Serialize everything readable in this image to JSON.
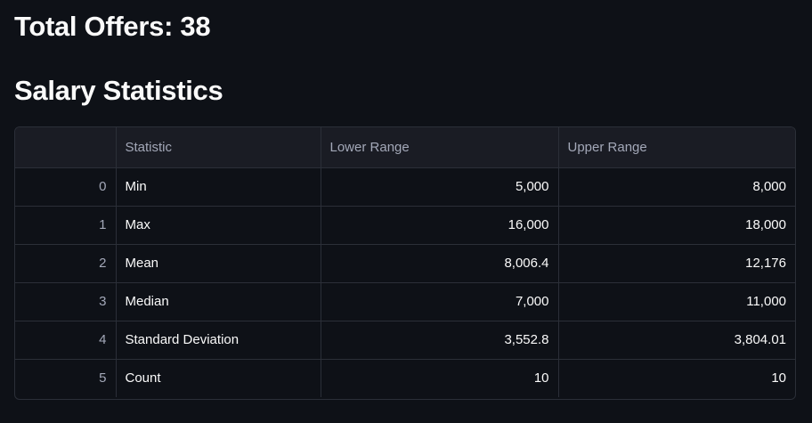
{
  "header": {
    "total_offers": "Total Offers: 38",
    "section_title": "Salary Statistics"
  },
  "table": {
    "columns": [
      "",
      "Statistic",
      "Lower Range",
      "Upper Range"
    ],
    "rows": [
      {
        "index": "0",
        "statistic": "Min",
        "lower": "5,000",
        "upper": "8,000"
      },
      {
        "index": "1",
        "statistic": "Max",
        "lower": "16,000",
        "upper": "18,000"
      },
      {
        "index": "2",
        "statistic": "Mean",
        "lower": "8,006.4",
        "upper": "12,176"
      },
      {
        "index": "3",
        "statistic": "Median",
        "lower": "7,000",
        "upper": "11,000"
      },
      {
        "index": "4",
        "statistic": "Standard Deviation",
        "lower": "3,552.8",
        "upper": "3,804.01"
      },
      {
        "index": "5",
        "statistic": "Count",
        "lower": "10",
        "upper": "10"
      }
    ]
  },
  "colors": {
    "background": "#0e1117",
    "header_bg": "#1a1c24",
    "text": "#fafafa",
    "muted_text": "#a3a8b8",
    "border": "#2b2f38"
  }
}
